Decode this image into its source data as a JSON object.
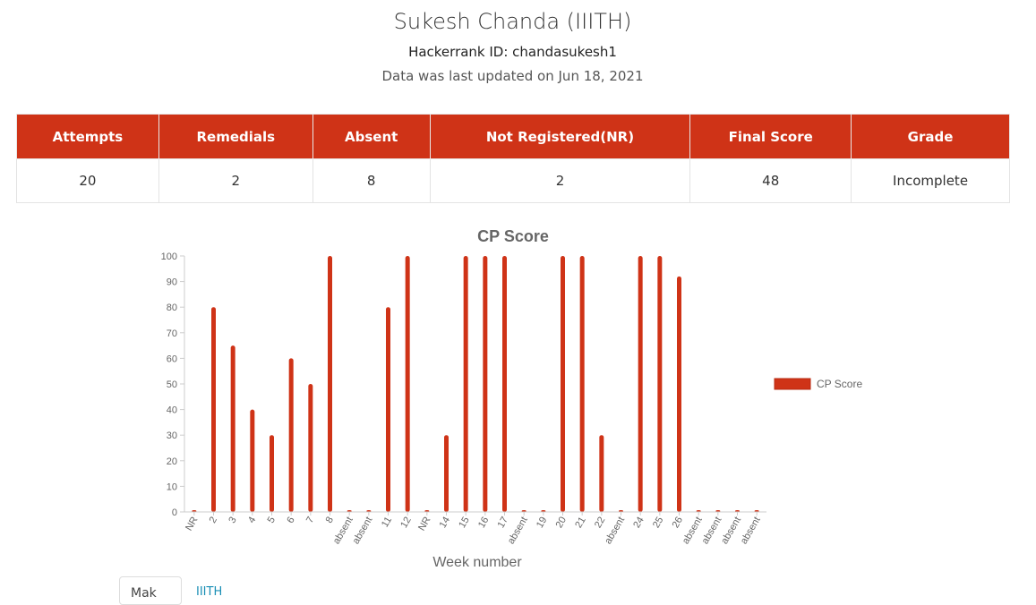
{
  "header": {
    "name": "Sukesh Chanda (IIITH)",
    "hackerrank": "Hackerrank ID: chandasukesh1",
    "updated": "Data was last updated on Jun 18, 2021"
  },
  "summary": {
    "headers": [
      "Attempts",
      "Remedials",
      "Absent",
      "Not Registered(NR)",
      "Final Score",
      "Grade"
    ],
    "values": [
      "20",
      "2",
      "8",
      "2",
      "48",
      "Incomplete"
    ]
  },
  "chart_data": {
    "type": "bar",
    "title": "CP Score",
    "xlabel": "Week number",
    "ylabel": "",
    "ylim": [
      0,
      100
    ],
    "yticks": [
      0,
      10,
      20,
      30,
      40,
      50,
      60,
      70,
      80,
      90,
      100
    ],
    "categories": [
      "NR",
      "2",
      "3",
      "4",
      "5",
      "6",
      "7",
      "8",
      "absent",
      "absent",
      "11",
      "12",
      "NR",
      "14",
      "15",
      "16",
      "17",
      "absent",
      "19",
      "20",
      "21",
      "22",
      "absent",
      "24",
      "25",
      "26",
      "absent",
      "absent",
      "absent",
      "absent"
    ],
    "series": [
      {
        "name": "CP Score",
        "color": "#cf3317",
        "values": [
          0,
          80,
          65,
          40,
          30,
          60,
          50,
          100,
          0,
          0,
          80,
          100,
          0,
          30,
          100,
          100,
          100,
          0,
          0,
          100,
          100,
          30,
          0,
          100,
          100,
          92,
          0,
          0,
          0,
          0
        ]
      }
    ],
    "legend": "right",
    "grid": false
  },
  "footer": {
    "button_label": "Mak",
    "link_label": "IIITH"
  }
}
